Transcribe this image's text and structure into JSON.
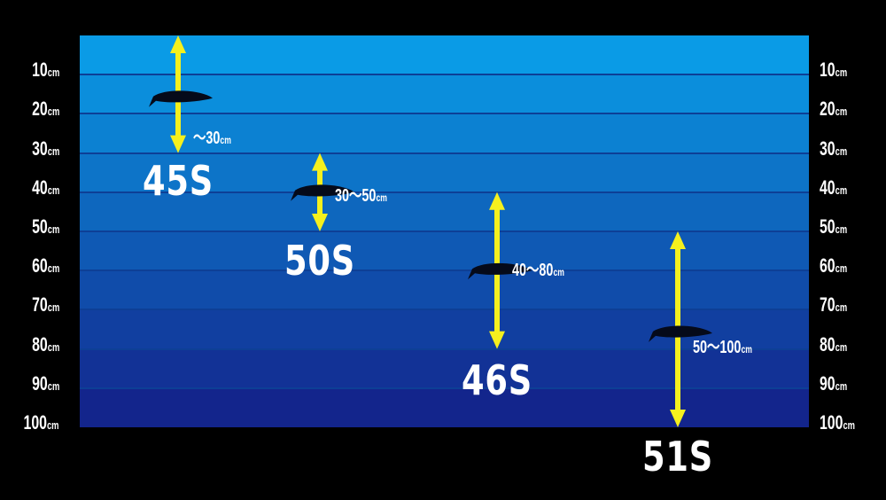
{
  "depth_axis": {
    "unit": "cm",
    "ticks": [
      "10",
      "20",
      "30",
      "40",
      "50",
      "60",
      "70",
      "80",
      "90",
      "100"
    ],
    "max": 100
  },
  "colors": {
    "top_water": "#0a9be6",
    "bottom_water": "#13258c",
    "arrow": "#f5f01e",
    "background": "#000000"
  },
  "lures": [
    {
      "name": "45S",
      "range_text": "～30",
      "unit": "cm",
      "depth_min": 0,
      "depth_max": 30,
      "fish_depth": 16
    },
    {
      "name": "50S",
      "range_text": "30～50",
      "unit": "cm",
      "depth_min": 30,
      "depth_max": 50,
      "fish_depth": 40
    },
    {
      "name": "46S",
      "range_text": "40～80",
      "unit": "cm",
      "depth_min": 40,
      "depth_max": 80,
      "fish_depth": 60
    },
    {
      "name": "51S",
      "range_text": "50～100",
      "unit": "cm",
      "depth_min": 50,
      "depth_max": 100,
      "fish_depth": 76
    }
  ]
}
